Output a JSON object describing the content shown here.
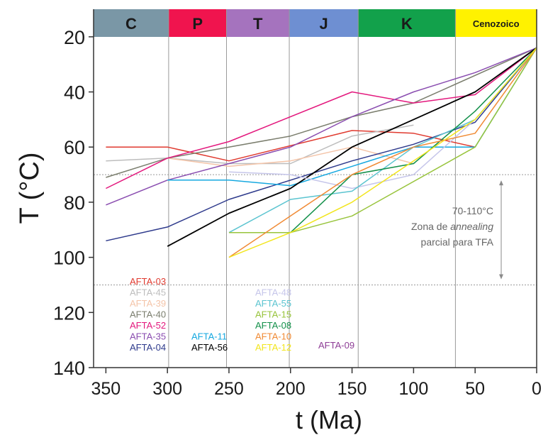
{
  "chart_data": {
    "type": "line",
    "xlabel": "t (Ma)",
    "ylabel": "T (°C)",
    "xlim": [
      360,
      0
    ],
    "ylim": [
      140,
      10
    ],
    "x_ticks": [
      350,
      300,
      250,
      200,
      150,
      100,
      50,
      0
    ],
    "y_ticks": [
      20,
      40,
      60,
      80,
      100,
      120,
      140
    ],
    "periods": [
      {
        "label": "C",
        "start": 360,
        "end": 299,
        "color": "#7a97a6"
      },
      {
        "label": "P",
        "start": 299,
        "end": 252,
        "color": "#f0144e"
      },
      {
        "label": "T",
        "start": 252,
        "end": 201,
        "color": "#a573be"
      },
      {
        "label": "J",
        "start": 201,
        "end": 145,
        "color": "#6e8fd2"
      },
      {
        "label": "K",
        "start": 145,
        "end": 66,
        "color": "#12a14b"
      },
      {
        "label": "Cenozoico",
        "start": 66,
        "end": 0,
        "color": "#fff200"
      }
    ],
    "annealing_zone": {
      "tmin": 70,
      "tmax": 110,
      "text_lines": [
        "70-110°C",
        "Zona de annealing",
        "parcial para TFA"
      ]
    },
    "series": [
      {
        "name": "AFTA-03",
        "color": "#e03a2f",
        "x": [
          350,
          300,
          250,
          150,
          100,
          50
        ],
        "y": [
          60,
          60,
          65,
          54,
          55,
          60
        ]
      },
      {
        "name": "AFTA-45",
        "color": "#bdbdbd",
        "x": [
          350,
          300,
          250,
          200,
          150,
          100
        ],
        "y": [
          65,
          64,
          66,
          66,
          56,
          52
        ]
      },
      {
        "name": "AFTA-39",
        "color": "#f4c4a8",
        "x": [
          300,
          250,
          200,
          150,
          100
        ],
        "y": [
          64,
          67,
          65,
          60,
          66
        ]
      },
      {
        "name": "AFTA-40",
        "color": "#7b7e6e",
        "x": [
          350,
          300,
          200,
          150,
          100,
          0
        ],
        "y": [
          71,
          64,
          56,
          49,
          44,
          24
        ]
      },
      {
        "name": "AFTA-52",
        "color": "#e3187d",
        "x": [
          350,
          300,
          250,
          150,
          100,
          50,
          0
        ],
        "y": [
          75,
          64,
          58,
          40,
          44,
          41,
          24
        ]
      },
      {
        "name": "AFTA-35",
        "color": "#8a4db0",
        "x": [
          350,
          300,
          200,
          150,
          100,
          50,
          0
        ],
        "y": [
          81,
          72,
          60,
          49,
          40,
          33,
          24
        ]
      },
      {
        "name": "AFTA-04",
        "color": "#2e3a8c",
        "x": [
          350,
          300,
          250,
          150,
          100,
          50,
          0
        ],
        "y": [
          94,
          89,
          79,
          65,
          59,
          51,
          24
        ]
      },
      {
        "name": "AFTA-11",
        "color": "#15a8e0",
        "x": [
          300,
          250,
          200,
          100,
          50,
          0
        ],
        "y": [
          72,
          72,
          74,
          60,
          60,
          24
        ]
      },
      {
        "name": "AFTA-56",
        "color": "#000000",
        "x": [
          300,
          250,
          200,
          150,
          100,
          50,
          0
        ],
        "y": [
          96,
          84,
          75,
          60,
          50,
          40,
          24
        ]
      },
      {
        "name": "AFTA-48",
        "color": "#c6c6ea",
        "x": [
          250,
          200,
          150,
          100,
          50,
          0
        ],
        "y": [
          69,
          70,
          75,
          70,
          50,
          24
        ]
      },
      {
        "name": "AFTA-55",
        "color": "#5bc4d0",
        "x": [
          250,
          200,
          150,
          100,
          50,
          0
        ],
        "y": [
          91,
          79,
          76,
          60,
          50,
          24
        ]
      },
      {
        "name": "AFTA-15",
        "color": "#98c43c",
        "x": [
          250,
          200,
          150,
          50,
          0
        ],
        "y": [
          91,
          91,
          85,
          60,
          24
        ]
      },
      {
        "name": "AFTA-08",
        "color": "#13904a",
        "x": [
          200,
          150,
          100,
          50,
          0
        ],
        "y": [
          91,
          70,
          66,
          47,
          24
        ]
      },
      {
        "name": "AFTA-10",
        "color": "#f08a34",
        "x": [
          250,
          200,
          150,
          100,
          50,
          0
        ],
        "y": [
          100,
          85,
          70,
          60,
          55,
          24
        ]
      },
      {
        "name": "AFTA-12",
        "color": "#f2e51d",
        "x": [
          250,
          200,
          150,
          100,
          50,
          0
        ],
        "y": [
          100,
          91,
          80,
          65,
          50,
          24
        ]
      },
      {
        "name": "AFTA-09",
        "color": "#8e3e96",
        "x": [],
        "y": []
      }
    ],
    "grid": true
  }
}
